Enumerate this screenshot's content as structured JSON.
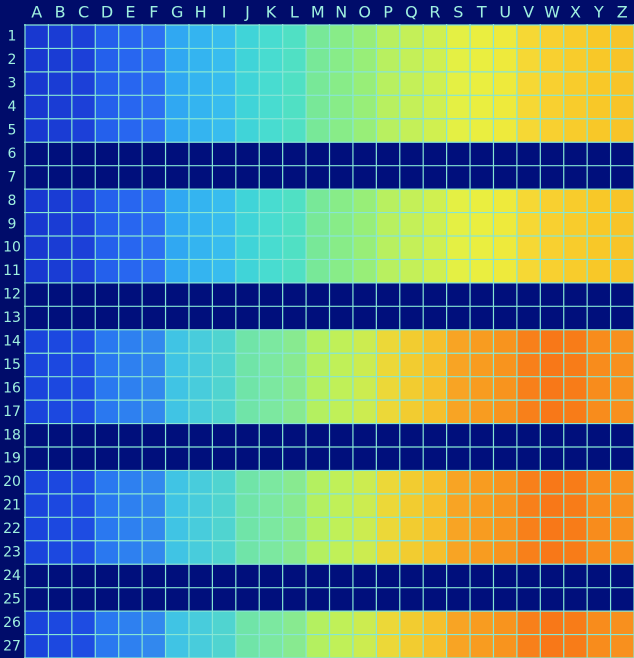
{
  "columns": [
    "A",
    "B",
    "C",
    "D",
    "E",
    "F",
    "G",
    "H",
    "I",
    "J",
    "K",
    "L",
    "M",
    "N",
    "O",
    "P",
    "Q",
    "R",
    "S",
    "T",
    "U",
    "V",
    "W",
    "X",
    "Y",
    "Z"
  ],
  "rows": [
    {
      "label": "1",
      "palette": 0
    },
    {
      "label": "2",
      "palette": 0
    },
    {
      "label": "3",
      "palette": 0
    },
    {
      "label": "4",
      "palette": 0
    },
    {
      "label": "5",
      "palette": 0
    },
    {
      "label": "6",
      "palette": null
    },
    {
      "label": "7",
      "palette": null
    },
    {
      "label": "8",
      "palette": 0
    },
    {
      "label": "9",
      "palette": 0
    },
    {
      "label": "10",
      "palette": 0
    },
    {
      "label": "11",
      "palette": 0
    },
    {
      "label": "12",
      "palette": null
    },
    {
      "label": "13",
      "palette": null
    },
    {
      "label": "14",
      "palette": 1
    },
    {
      "label": "15",
      "palette": 1
    },
    {
      "label": "16",
      "palette": 1
    },
    {
      "label": "17",
      "palette": 1
    },
    {
      "label": "18",
      "palette": null
    },
    {
      "label": "19",
      "palette": null
    },
    {
      "label": "20",
      "palette": 1
    },
    {
      "label": "21",
      "palette": 1
    },
    {
      "label": "22",
      "palette": 1
    },
    {
      "label": "23",
      "palette": 1
    },
    {
      "label": "24",
      "palette": null
    },
    {
      "label": "25",
      "palette": null
    },
    {
      "label": "26",
      "palette": 1
    },
    {
      "label": "27",
      "palette": 1
    }
  ],
  "palettes": [
    [
      "#1838d0",
      "#1a3cd4",
      "#1c40d8",
      "#2460ec",
      "#2866f0",
      "#2c70f2",
      "#30a8f2",
      "#34b4f0",
      "#38bcee",
      "#40d4d8",
      "#48dcd0",
      "#50e0c4",
      "#78e898",
      "#88ec88",
      "#98ee78",
      "#b8f060",
      "#c4f058",
      "#d0f050",
      "#e4f044",
      "#eaee40",
      "#eeea3c",
      "#f6d834",
      "#f8d030",
      "#f8cc2c",
      "#f8c828",
      "#f8c428"
    ],
    [
      "#1a44dc",
      "#1c48e0",
      "#1e4ce2",
      "#2a78f0",
      "#2e80f0",
      "#3288ee",
      "#40c4e4",
      "#48ccdc",
      "#50d4d0",
      "#70e4a8",
      "#7ce8a0",
      "#88ea90",
      "#b4f060",
      "#c0f058",
      "#ccec50",
      "#ecd838",
      "#f2cc30",
      "#f6c02c",
      "#f8a424",
      "#f89c20",
      "#f8941e",
      "#f8801a",
      "#f87818",
      "#f87c18",
      "#f88c1c",
      "#f8901e"
    ]
  ],
  "blank_color": "#000f7c",
  "grid_color": "#86e6d4"
}
